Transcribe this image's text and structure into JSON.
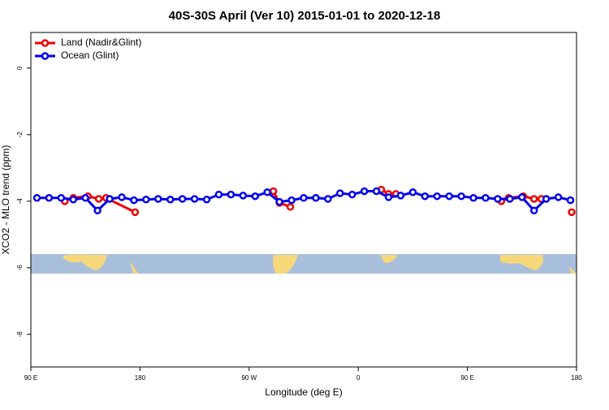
{
  "chart_data": {
    "type": "line",
    "title": "40S-30S April (Ver 10)   2015-01-01 to 2020-12-18",
    "xlabel": "Longitude (deg E)",
    "ylabel": "XCO2 - MLO trend (ppm)",
    "xlim": [
      90,
      540
    ],
    "xticks": [
      {
        "value": 90,
        "label": "90 E"
      },
      180,
      {
        "value": 270,
        "label": "90 W"
      },
      {
        "value": 360,
        "label": "0"
      },
      {
        "value": 450,
        "label": "90 E"
      },
      {
        "value": 540,
        "label": "180"
      }
    ],
    "ylim": [
      -8.98,
      1.07
    ],
    "yticks": [
      0,
      -2,
      -4,
      -6,
      -8
    ],
    "legend": "top-left",
    "series": [
      {
        "name": "Land (Nadir&Glint)",
        "color": "#ee0000",
        "x": [
          118,
          125,
          137,
          146,
          152,
          176,
          null,
          290,
          295,
          304,
          null,
          379,
          385,
          391,
          null,
          478,
          484,
          496,
          505,
          511,
          null,
          536
        ],
        "values": [
          -4.0,
          -3.9,
          -3.85,
          -3.93,
          -3.9,
          -4.33,
          null,
          -3.7,
          -4.05,
          -4.17,
          null,
          -3.65,
          -3.78,
          -3.78,
          null,
          -4.0,
          -3.9,
          -3.85,
          -3.93,
          -3.93,
          null,
          -4.33
        ]
      },
      {
        "name": "Ocean (Glint)",
        "color": "#0000ee",
        "x": [
          95,
          105,
          115,
          125,
          135,
          145,
          155,
          165,
          175,
          185,
          195,
          205,
          215,
          225,
          235,
          245,
          255,
          265,
          275,
          285,
          295,
          305,
          315,
          325,
          335,
          345,
          355,
          365,
          375,
          385,
          395,
          405,
          415,
          425,
          435,
          445,
          455,
          465,
          475,
          485,
          495,
          505,
          515,
          525,
          535
        ],
        "values": [
          -3.9,
          -3.9,
          -3.9,
          -3.95,
          -3.9,
          -4.28,
          -3.93,
          -3.88,
          -3.97,
          -3.95,
          -3.93,
          -3.95,
          -3.93,
          -3.93,
          -3.95,
          -3.8,
          -3.8,
          -3.83,
          -3.85,
          -3.73,
          -4.02,
          -3.97,
          -3.9,
          -3.9,
          -3.93,
          -3.76,
          -3.8,
          -3.7,
          -3.7,
          -3.88,
          -3.83,
          -3.73,
          -3.85,
          -3.85,
          -3.85,
          -3.85,
          -3.9,
          -3.9,
          -3.93,
          -3.93,
          -3.88,
          -4.28,
          -3.93,
          -3.88,
          -3.97
        ]
      }
    ]
  }
}
